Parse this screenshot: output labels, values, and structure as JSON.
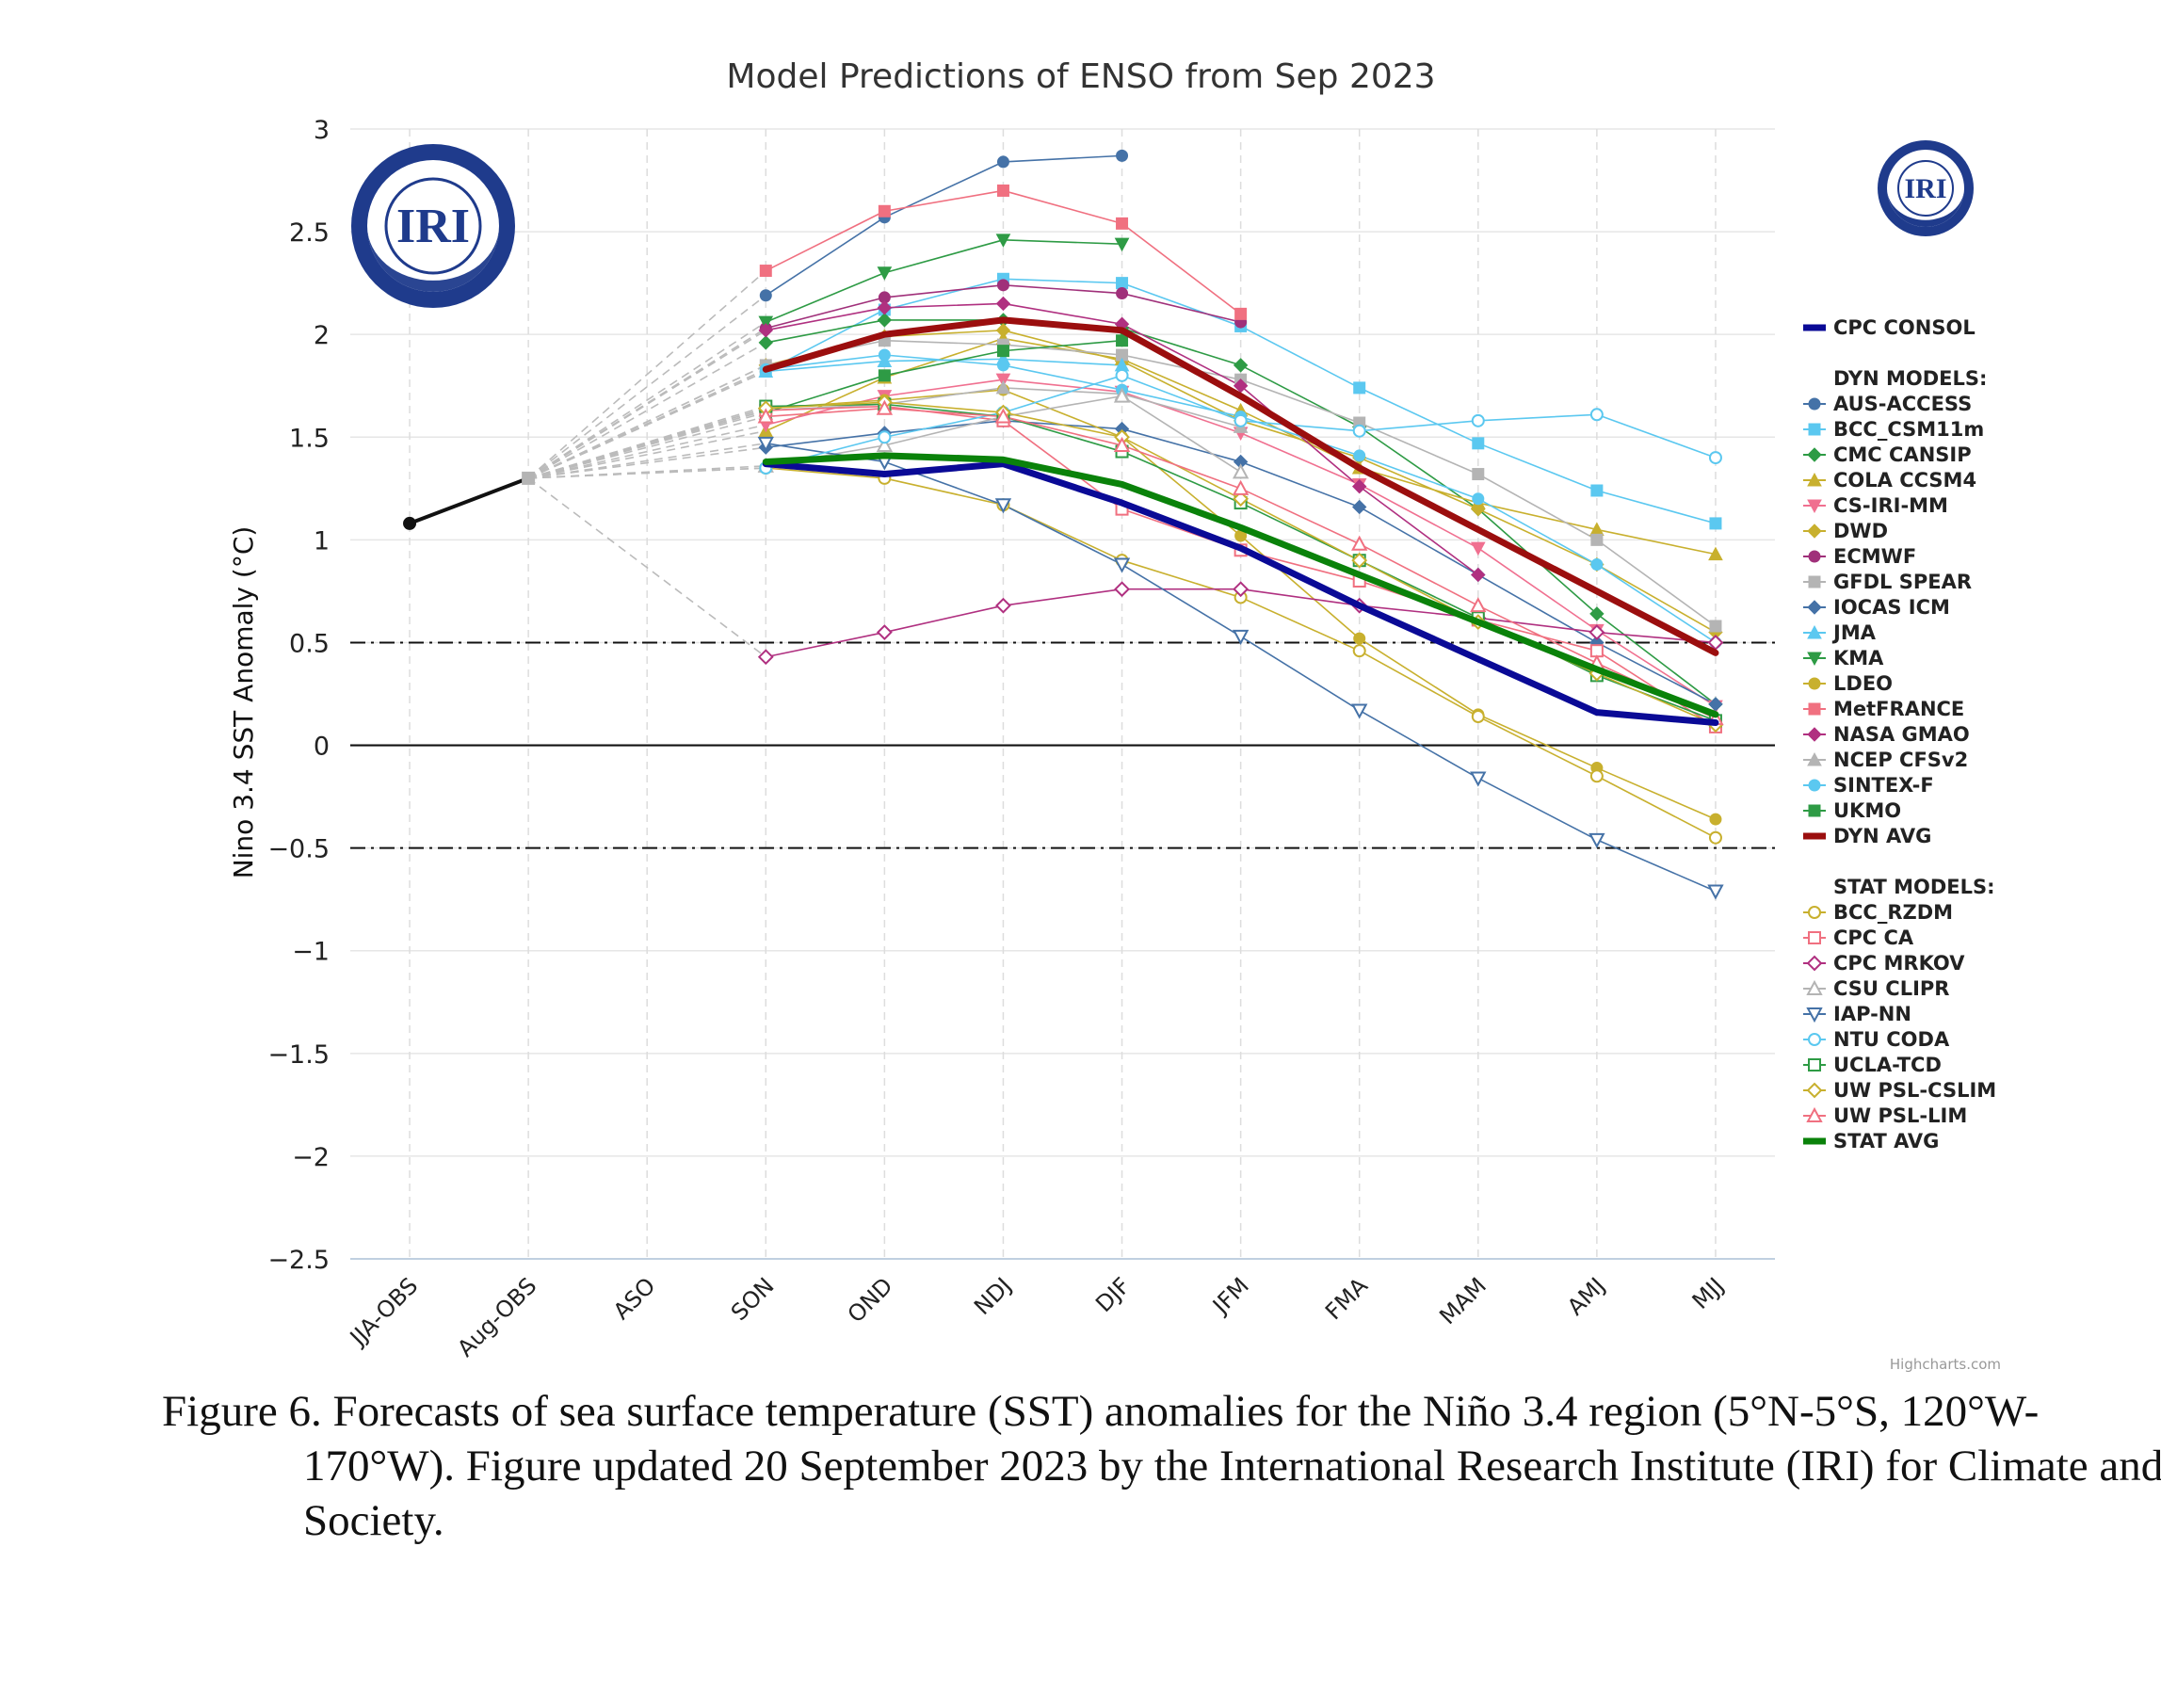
{
  "chart_data": {
    "type": "line",
    "title": "Model Predictions of ENSO from Sep 2023",
    "ylabel": "Nino 3.4 SST Anomaly (°C)",
    "xlabel": "",
    "categories": [
      "JJA-OBS",
      "Aug-OBS",
      "ASO",
      "SON",
      "OND",
      "NDJ",
      "DJF",
      "JFM",
      "FMA",
      "MAM",
      "AMJ",
      "MJJ"
    ],
    "ylim": [
      -2.5,
      3
    ],
    "yticks": [
      3,
      2.5,
      2,
      1.5,
      1,
      0.5,
      0,
      -0.5,
      -1,
      -1.5,
      -2,
      -2.5
    ],
    "ytick_labels": [
      "3",
      "2.5",
      "2",
      "1.5",
      "1",
      "0.5",
      "0",
      "−0.5",
      "−1",
      "−1.5",
      "−2",
      "−2.5"
    ],
    "reference_lines": [
      0.5,
      0,
      -0.5
    ],
    "grid": true,
    "legend_position": "right",
    "observed": {
      "x": [
        "JJA-OBS",
        "Aug-OBS"
      ],
      "values": [
        1.08,
        1.3
      ],
      "color": "#111111"
    },
    "legend_headers": {
      "dyn": "DYN MODELS:",
      "stat": "STAT MODELS:"
    },
    "series": [
      {
        "name": "CPC CONSOL",
        "group": "consol",
        "color": "#0a0a96",
        "marker": "none",
        "width": 7,
        "values": [
          null,
          null,
          null,
          1.37,
          1.32,
          1.37,
          1.18,
          0.96,
          0.68,
          0.42,
          0.16,
          0.11
        ]
      },
      {
        "name": "AUS-ACCESS",
        "group": "dyn",
        "color": "#4572a7",
        "marker": "circle",
        "values": [
          null,
          null,
          null,
          2.19,
          2.57,
          2.84,
          2.87,
          null,
          null,
          null,
          null,
          null
        ]
      },
      {
        "name": "BCC_CSM11m",
        "group": "dyn",
        "color": "#5bc8f0",
        "marker": "square",
        "values": [
          null,
          null,
          null,
          1.82,
          2.12,
          2.27,
          2.25,
          2.04,
          1.74,
          1.47,
          1.24,
          1.08
        ]
      },
      {
        "name": "CMC CANSIP",
        "group": "dyn",
        "color": "#2e9b45",
        "marker": "diamond",
        "values": [
          null,
          null,
          null,
          1.96,
          2.07,
          2.07,
          2.03,
          1.85,
          1.55,
          1.15,
          0.64,
          0.2
        ]
      },
      {
        "name": "COLA CCSM4",
        "group": "dyn",
        "color": "#c8b02e",
        "marker": "triangle",
        "values": [
          null,
          null,
          null,
          1.53,
          1.79,
          1.98,
          1.88,
          1.63,
          1.35,
          1.18,
          1.05,
          0.93
        ]
      },
      {
        "name": "CS-IRI-MM",
        "group": "dyn",
        "color": "#f07090",
        "marker": "triangle-down",
        "values": [
          null,
          null,
          null,
          1.56,
          1.7,
          1.78,
          1.72,
          1.52,
          1.27,
          0.96,
          0.56,
          0.19
        ]
      },
      {
        "name": "DWD",
        "group": "dyn",
        "color": "#c8b02e",
        "marker": "diamond",
        "values": [
          null,
          null,
          null,
          1.85,
          1.99,
          2.02,
          1.87,
          1.58,
          1.4,
          1.15,
          0.88,
          0.55
        ]
      },
      {
        "name": "ECMWF",
        "group": "dyn",
        "color": "#a0307a",
        "marker": "circle",
        "values": [
          null,
          null,
          null,
          2.03,
          2.18,
          2.24,
          2.2,
          2.06,
          null,
          null,
          null,
          null
        ]
      },
      {
        "name": "GFDL SPEAR",
        "group": "dyn",
        "color": "#b4b4b4",
        "marker": "square",
        "values": [
          null,
          null,
          null,
          1.85,
          1.97,
          1.95,
          1.9,
          1.78,
          1.57,
          1.32,
          1.0,
          0.58
        ]
      },
      {
        "name": "IOCAS ICM",
        "group": "dyn",
        "color": "#4572a7",
        "marker": "diamond",
        "values": [
          null,
          null,
          null,
          1.45,
          1.52,
          1.58,
          1.54,
          1.38,
          1.16,
          0.83,
          0.5,
          0.2
        ]
      },
      {
        "name": "JMA",
        "group": "dyn",
        "color": "#5bc8f0",
        "marker": "triangle",
        "values": [
          null,
          null,
          null,
          1.82,
          1.87,
          1.88,
          1.85,
          null,
          null,
          null,
          null,
          null
        ]
      },
      {
        "name": "KMA",
        "group": "dyn",
        "color": "#2e9b45",
        "marker": "triangle-down",
        "values": [
          null,
          null,
          null,
          2.06,
          2.3,
          2.46,
          2.44,
          null,
          null,
          null,
          null,
          null
        ]
      },
      {
        "name": "LDEO",
        "group": "dyn",
        "color": "#c8b02e",
        "marker": "circle",
        "values": [
          null,
          null,
          null,
          1.64,
          1.68,
          1.73,
          1.5,
          1.02,
          0.52,
          0.15,
          -0.11,
          -0.36
        ]
      },
      {
        "name": "MetFRANCE",
        "group": "dyn",
        "color": "#f07080",
        "marker": "square",
        "values": [
          null,
          null,
          null,
          2.31,
          2.6,
          2.7,
          2.54,
          2.1,
          null,
          null,
          null,
          null
        ]
      },
      {
        "name": "NASA GMAO",
        "group": "dyn",
        "color": "#b03080",
        "marker": "diamond",
        "values": [
          null,
          null,
          null,
          2.02,
          2.13,
          2.15,
          2.05,
          1.75,
          1.26,
          0.83,
          null,
          null
        ]
      },
      {
        "name": "NCEP CFSv2",
        "group": "dyn",
        "color": "#b4b4b4",
        "marker": "triangle",
        "values": [
          null,
          null,
          null,
          1.63,
          1.66,
          1.74,
          1.71,
          1.55,
          null,
          null,
          null,
          null
        ]
      },
      {
        "name": "SINTEX-F",
        "group": "dyn",
        "color": "#5bc8f0",
        "marker": "circle",
        "values": [
          null,
          null,
          null,
          1.83,
          1.9,
          1.85,
          1.73,
          1.6,
          1.41,
          1.2,
          0.88,
          0.5
        ]
      },
      {
        "name": "UKMO",
        "group": "dyn",
        "color": "#2e9b45",
        "marker": "square",
        "values": [
          null,
          null,
          null,
          1.62,
          1.8,
          1.92,
          1.97,
          null,
          null,
          null,
          null,
          null
        ]
      },
      {
        "name": "DYN AVG",
        "group": "dynavg",
        "color": "#9b0e0e",
        "marker": "none",
        "width": 7,
        "values": [
          null,
          null,
          null,
          1.83,
          2.0,
          2.07,
          2.02,
          1.7,
          1.35,
          1.05,
          0.75,
          0.45
        ]
      },
      {
        "name": "BCC_RZDM",
        "group": "stat",
        "color": "#c8b02e",
        "marker": "circle-open",
        "values": [
          null,
          null,
          null,
          1.35,
          1.3,
          1.17,
          0.9,
          0.72,
          0.46,
          0.14,
          -0.15,
          -0.45
        ]
      },
      {
        "name": "CPC CA",
        "group": "stat",
        "color": "#f07080",
        "marker": "square-open",
        "values": [
          null,
          null,
          null,
          1.63,
          1.65,
          1.58,
          1.15,
          0.95,
          0.8,
          0.61,
          0.46,
          0.09
        ]
      },
      {
        "name": "CPC MRKOV",
        "group": "stat",
        "color": "#b03080",
        "marker": "diamond-open",
        "values": [
          null,
          null,
          null,
          0.43,
          0.55,
          0.68,
          0.76,
          0.76,
          0.68,
          0.62,
          0.55,
          0.5
        ]
      },
      {
        "name": "CSU CLIPR",
        "group": "stat",
        "color": "#b4b4b4",
        "marker": "triangle-open",
        "values": [
          null,
          null,
          null,
          1.36,
          1.46,
          1.6,
          1.7,
          1.33,
          null,
          null,
          null,
          null
        ]
      },
      {
        "name": "IAP-NN",
        "group": "stat",
        "color": "#4572a7",
        "marker": "triangle-down-open",
        "values": [
          null,
          null,
          null,
          1.47,
          1.38,
          1.17,
          0.88,
          0.53,
          0.17,
          -0.16,
          -0.46,
          -0.71
        ]
      },
      {
        "name": "NTU CODA",
        "group": "stat",
        "color": "#5bc8f0",
        "marker": "circle-open",
        "values": [
          null,
          null,
          null,
          1.35,
          1.5,
          1.62,
          1.8,
          1.58,
          1.53,
          1.58,
          1.61,
          1.4
        ]
      },
      {
        "name": "UCLA-TCD",
        "group": "stat",
        "color": "#2e9b45",
        "marker": "square-open",
        "values": [
          null,
          null,
          null,
          1.65,
          1.66,
          1.6,
          1.43,
          1.18,
          0.9,
          0.62,
          0.34,
          0.12
        ]
      },
      {
        "name": "UW PSL-CSLIM",
        "group": "stat",
        "color": "#c8b02e",
        "marker": "diamond-open",
        "values": [
          null,
          null,
          null,
          1.64,
          1.67,
          1.62,
          1.5,
          1.2,
          0.9,
          0.6,
          0.35,
          0.1
        ]
      },
      {
        "name": "UW PSL-LIM",
        "group": "stat",
        "color": "#f07080",
        "marker": "triangle-open",
        "values": [
          null,
          null,
          null,
          1.6,
          1.64,
          1.6,
          1.46,
          1.25,
          0.98,
          0.68,
          0.4,
          0.13
        ]
      },
      {
        "name": "STAT AVG",
        "group": "statavg",
        "color": "#0a820a",
        "marker": "none",
        "width": 7,
        "values": [
          null,
          null,
          null,
          1.38,
          1.41,
          1.39,
          1.27,
          1.06,
          0.83,
          0.6,
          0.37,
          0.15
        ]
      }
    ]
  },
  "logos": {
    "text": "IRI",
    "color": "#1f3b8c"
  },
  "credits": "Highcharts.com",
  "caption": "Figure 6. Forecasts of sea surface temperature (SST) anomalies for the Niño 3.4 region (5°N-5°S, 120°W-170°W). Figure updated 20 September 2023 by the International Research Institute (IRI) for Climate and Society."
}
